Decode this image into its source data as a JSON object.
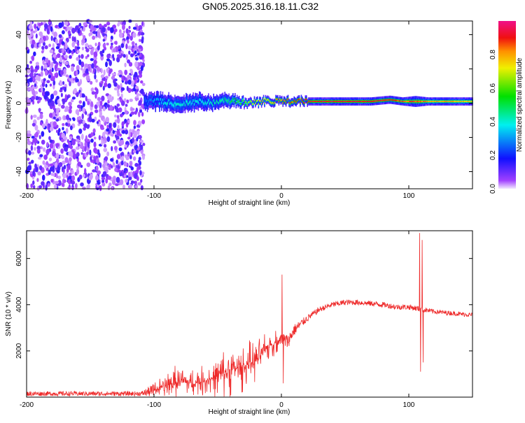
{
  "chart_data": [
    {
      "type": "heatmap",
      "title": "GN05.2025.316.18.11.C32",
      "xlabel": "Height of straight line (km)",
      "ylabel": "Frequency (Hz)",
      "xlim": [
        -200,
        150
      ],
      "ylim": [
        -50,
        48
      ],
      "xticks": [
        -200,
        -100,
        0,
        100
      ],
      "yticks": [
        -40,
        -20,
        0,
        20,
        40
      ],
      "colorbar": {
        "label": "Normalized spectral amplitude",
        "range": [
          0,
          1
        ],
        "ticks": [
          0.0,
          0.2,
          0.4,
          0.6,
          0.8
        ]
      },
      "noise_region_x": [
        -200,
        -108
      ],
      "band": {
        "x": [
          -105,
          -95,
          -85,
          -75,
          -65,
          -55,
          -45,
          -35,
          -25,
          -15,
          -5,
          5,
          15,
          30,
          50,
          70,
          85,
          95,
          105,
          115,
          130,
          150
        ],
        "center_hz": [
          1,
          1,
          0,
          0,
          1,
          0,
          2,
          1,
          0,
          1,
          1,
          1,
          1,
          1,
          1,
          1,
          2,
          1,
          1,
          1,
          1,
          1
        ],
        "amplitude": [
          0.25,
          0.35,
          0.4,
          0.4,
          0.35,
          0.4,
          0.45,
          0.55,
          0.7,
          0.75,
          0.8,
          0.85,
          0.9,
          0.92,
          0.92,
          0.92,
          0.9,
          0.85,
          0.85,
          0.8,
          0.8,
          0.75
        ],
        "width_hz": [
          6,
          6,
          6,
          6,
          6,
          5,
          5,
          4,
          3,
          3,
          3,
          3,
          3,
          3,
          3,
          3,
          3,
          3,
          4,
          3,
          3,
          3
        ]
      }
    },
    {
      "type": "line",
      "xlabel": "Height of straight line (km)",
      "ylabel": "SNR (10 * v/v)",
      "xlim": [
        -200,
        150
      ],
      "ylim": [
        0,
        7200
      ],
      "xticks": [
        -200,
        -100,
        0,
        100
      ],
      "yticks": [
        2000,
        4000,
        6000
      ],
      "color": "#ee2a2a",
      "x": [
        -200,
        -110,
        -100,
        -90,
        -80,
        -70,
        -60,
        -50,
        -40,
        -30,
        -20,
        -10,
        0,
        5,
        10,
        20,
        30,
        40,
        50,
        60,
        70,
        80,
        90,
        100,
        110,
        120,
        130,
        150
      ],
      "mean": [
        150,
        150,
        300,
        500,
        700,
        600,
        700,
        900,
        1200,
        1300,
        1600,
        2200,
        2500,
        2400,
        2900,
        3400,
        3800,
        4000,
        4100,
        4100,
        4050,
        4000,
        3900,
        3900,
        3800,
        3700,
        3650,
        3550
      ],
      "noise": [
        100,
        100,
        300,
        500,
        600,
        500,
        600,
        700,
        900,
        800,
        700,
        500,
        400,
        300,
        250,
        150,
        120,
        120,
        120,
        120,
        120,
        120,
        120,
        120,
        120,
        100,
        100,
        100
      ],
      "spikes": [
        {
          "x": 0.5,
          "y": 5300
        },
        {
          "x": 1.5,
          "y": 600
        },
        {
          "x": 108.5,
          "y": 7100
        },
        {
          "x": 109.2,
          "y": 1100
        },
        {
          "x": 110.5,
          "y": 6800
        },
        {
          "x": 111.2,
          "y": 1500
        }
      ]
    }
  ]
}
